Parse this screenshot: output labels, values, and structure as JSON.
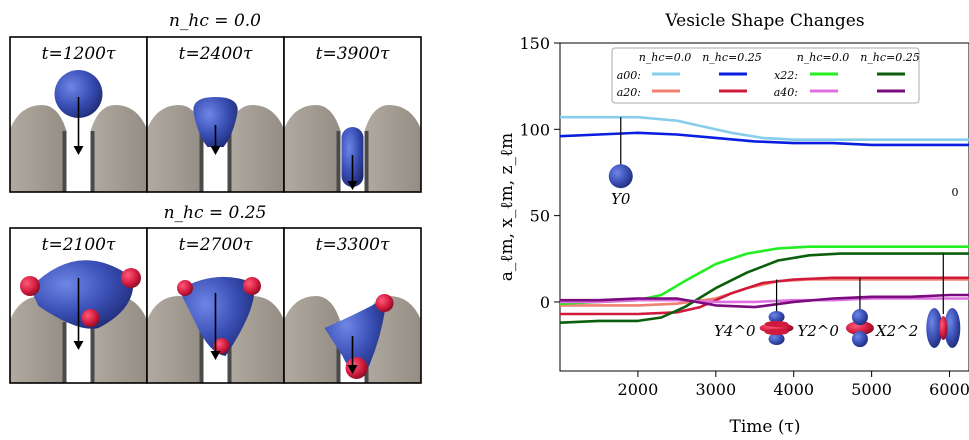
{
  "left_panel": {
    "rows": [
      {
        "title": "n_hc = 0.0",
        "frames": [
          {
            "time_label": "t=1200τ",
            "shape": "sphere",
            "decorated": false
          },
          {
            "time_label": "t=2400τ",
            "shape": "pear",
            "decorated": false
          },
          {
            "time_label": "t=3900τ",
            "shape": "capsule",
            "decorated": false
          }
        ]
      },
      {
        "title": "n_hc = 0.25",
        "frames": [
          {
            "time_label": "t=2100τ",
            "shape": "wide",
            "decorated": true
          },
          {
            "time_label": "t=2700τ",
            "shape": "wide-deep",
            "decorated": true
          },
          {
            "time_label": "t=3300τ",
            "shape": "funnel",
            "decorated": true
          }
        ]
      }
    ],
    "colors": {
      "vesicle": "#3a4fb5",
      "decoration": "#d01a3c",
      "wall": "#a39d93",
      "wall_dark": "#4a4a4a"
    }
  },
  "chart_data": {
    "type": "line",
    "title": "Vesicle Shape Changes",
    "xlabel": "Time (τ)",
    "ylabel": "a_ℓm, x_ℓm, z_ℓm",
    "xlim": [
      1000,
      6250
    ],
    "ylim": [
      -40,
      150
    ],
    "xticks": [
      2000,
      3000,
      4000,
      5000,
      6000
    ],
    "yticks": [
      0,
      50,
      100,
      150
    ],
    "grid": false,
    "legend_position": "top-center",
    "legend": {
      "column_headers": [
        "n_hc=0.0",
        "n_hc=0.25",
        "n_hc=0.0",
        "n_hc=0.25"
      ],
      "row_labels": [
        "a00:",
        "a20:",
        "x22:",
        "a40:"
      ]
    },
    "series": [
      {
        "name": "a00 nhc=0.0",
        "color": "#87ceeb",
        "x": [
          1000,
          1500,
          2000,
          2500,
          2800,
          3200,
          3600,
          4000,
          4500,
          5000,
          5500,
          6000,
          6250
        ],
        "y": [
          107,
          107,
          107,
          105,
          102,
          98,
          95,
          94,
          94,
          94,
          94,
          94,
          94
        ]
      },
      {
        "name": "a00 nhc=0.25",
        "color": "#0a1ee0",
        "x": [
          1000,
          1500,
          2000,
          2500,
          3000,
          3500,
          4000,
          4500,
          5000,
          5500,
          6000,
          6250
        ],
        "y": [
          96,
          97,
          98,
          97,
          95,
          93,
          92,
          92,
          91,
          91,
          91,
          91
        ]
      },
      {
        "name": "a20 nhc=0.0",
        "color": "#f08070",
        "x": [
          1000,
          1500,
          2000,
          2500,
          3000,
          3400,
          3800,
          4200,
          5000,
          5500,
          6000,
          6250
        ],
        "y": [
          -2,
          -2,
          -2,
          -1,
          2,
          8,
          12,
          13,
          13,
          13,
          13,
          13
        ]
      },
      {
        "name": "a20 nhc=0.25",
        "color": "#d01a3c",
        "x": [
          1000,
          1500,
          2000,
          2500,
          2800,
          3200,
          3600,
          4000,
          4500,
          5000,
          5500,
          6000,
          6250
        ],
        "y": [
          -7,
          -7,
          -7,
          -6,
          -3,
          5,
          11,
          13,
          14,
          14,
          14,
          14,
          14
        ]
      },
      {
        "name": "x22 nhc=0.0",
        "color": "#22ee22",
        "x": [
          1000,
          1500,
          2000,
          2300,
          2600,
          3000,
          3400,
          3800,
          4200,
          4600,
          5000,
          5500,
          6000,
          6250
        ],
        "y": [
          -1,
          0,
          1,
          4,
          12,
          22,
          28,
          31,
          32,
          32,
          32,
          32,
          32,
          32
        ]
      },
      {
        "name": "x22 nhc=0.25",
        "color": "#0b5e0b",
        "x": [
          1000,
          1500,
          2000,
          2300,
          2600,
          3000,
          3400,
          3800,
          4200,
          4600,
          5000,
          5500,
          6000,
          6250
        ],
        "y": [
          -12,
          -11,
          -11,
          -9,
          -3,
          8,
          17,
          24,
          27,
          28,
          28,
          28,
          28,
          28
        ]
      },
      {
        "name": "a40 nhc=0.0",
        "color": "#e070e0",
        "x": [
          1000,
          1500,
          2000,
          2500,
          3000,
          3500,
          4000,
          4500,
          5000,
          5500,
          6000,
          6250
        ],
        "y": [
          0,
          0,
          1,
          1,
          0,
          0,
          1,
          1,
          2,
          2,
          2,
          2
        ]
      },
      {
        "name": "a40 nhc=0.25",
        "color": "#7a0b7e",
        "x": [
          1000,
          1500,
          2000,
          2500,
          3000,
          3500,
          4000,
          4500,
          5000,
          5500,
          6000,
          6250
        ],
        "y": [
          1,
          1,
          2,
          2,
          -2,
          -3,
          0,
          2,
          3,
          3,
          4,
          4
        ]
      }
    ],
    "annotations": [
      {
        "label": "Y0",
        "x": 1780,
        "y_top": 107,
        "y_end": 74,
        "icon": "sphere"
      },
      {
        "label": "Y4^0",
        "x": 3780,
        "y_top": 13,
        "y_end": -7,
        "icon": "y40"
      },
      {
        "label": "Y2^0",
        "x": 4850,
        "y_top": 14,
        "y_end": -7,
        "icon": "y20"
      },
      {
        "label": "X2^2",
        "x": 5920,
        "y_top": 28,
        "y_end": -7,
        "icon": "x22"
      }
    ],
    "extra_text": "0"
  }
}
